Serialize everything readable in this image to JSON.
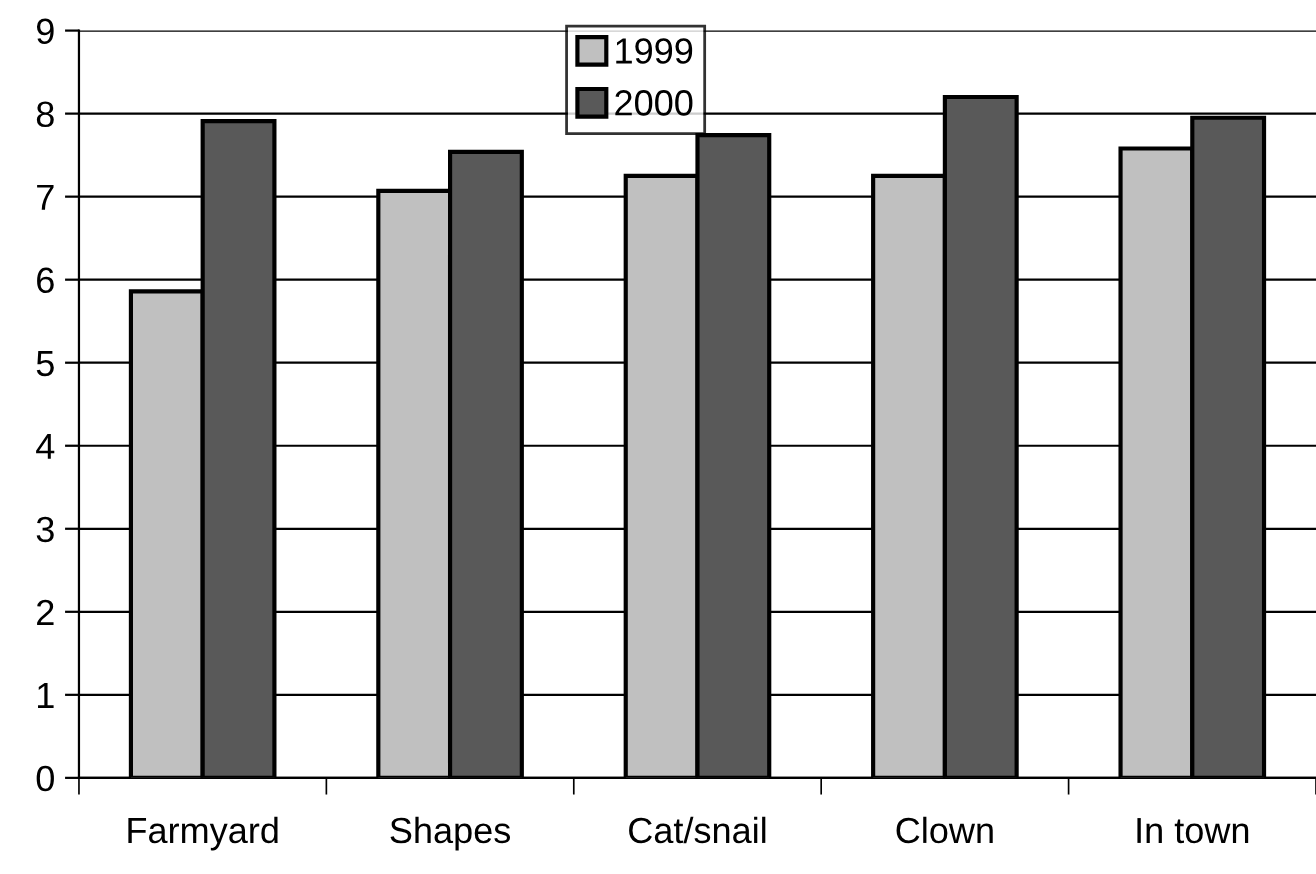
{
  "chart_data": {
    "type": "bar",
    "categories": [
      "Farmyard",
      "Shapes",
      "Cat/snail",
      "Clown",
      "In town"
    ],
    "series": [
      {
        "name": "1999",
        "color": "#c0c0c0",
        "values": [
          5.86,
          7.07,
          7.25,
          7.25,
          7.58
        ]
      },
      {
        "name": "2000",
        "color": "#595959",
        "values": [
          7.91,
          7.54,
          7.74,
          8.2,
          7.95
        ]
      }
    ],
    "ylim": [
      0,
      9
    ],
    "yticks": [
      0,
      1,
      2,
      3,
      4,
      5,
      6,
      7,
      8,
      9
    ],
    "grid": "y",
    "legend": "top"
  }
}
